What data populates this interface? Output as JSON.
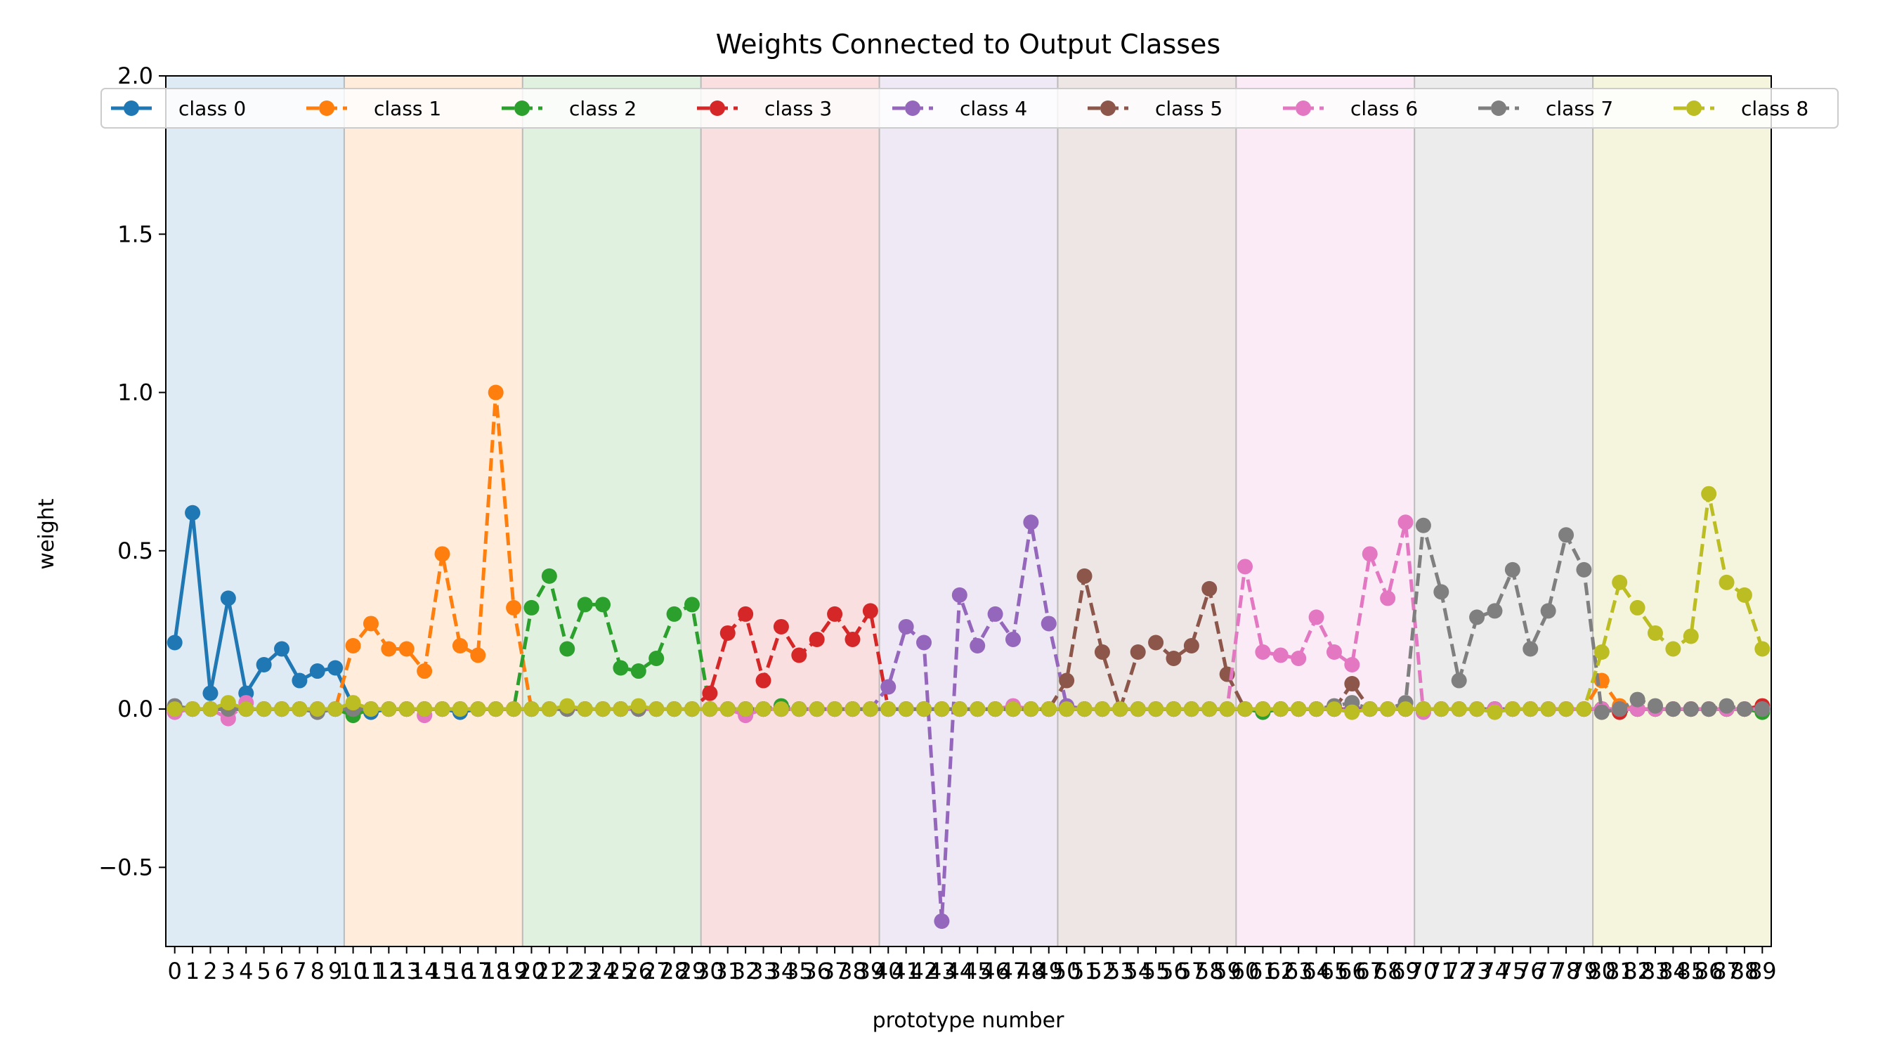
{
  "chart_data": {
    "type": "line",
    "title": "Weights Connected to Output Classes",
    "xlabel": "prototype number",
    "ylabel": "weight",
    "xlim": [
      -0.5,
      89.5
    ],
    "ylim": [
      -0.75,
      2.0
    ],
    "yticks": [
      -0.5,
      0.0,
      0.5,
      1.0,
      1.5,
      2.0
    ],
    "ytick_labels": [
      "−0.5",
      "0.0",
      "0.5",
      "1.0",
      "1.5",
      "2.0"
    ],
    "x": [
      0,
      1,
      2,
      3,
      4,
      5,
      6,
      7,
      8,
      9,
      10,
      11,
      12,
      13,
      14,
      15,
      16,
      17,
      18,
      19,
      20,
      21,
      22,
      23,
      24,
      25,
      26,
      27,
      28,
      29,
      30,
      31,
      32,
      33,
      34,
      35,
      36,
      37,
      38,
      39,
      40,
      41,
      42,
      43,
      44,
      45,
      46,
      47,
      48,
      49,
      50,
      51,
      52,
      53,
      54,
      55,
      56,
      57,
      58,
      59,
      60,
      61,
      62,
      63,
      64,
      65,
      66,
      67,
      68,
      69,
      70,
      71,
      72,
      73,
      74,
      75,
      76,
      77,
      78,
      79,
      80,
      81,
      82,
      83,
      84,
      85,
      86,
      87,
      88,
      89
    ],
    "grid": false,
    "legend_position": "top",
    "legend_ncol": 9,
    "bands": [
      {
        "start": 0,
        "end": 10,
        "color": "#1f77b4"
      },
      {
        "start": 10,
        "end": 20,
        "color": "#ff7f0e"
      },
      {
        "start": 20,
        "end": 30,
        "color": "#2ca02c"
      },
      {
        "start": 30,
        "end": 40,
        "color": "#d62728"
      },
      {
        "start": 40,
        "end": 50,
        "color": "#9467bd"
      },
      {
        "start": 50,
        "end": 60,
        "color": "#8c564b"
      },
      {
        "start": 60,
        "end": 70,
        "color": "#e377c2"
      },
      {
        "start": 70,
        "end": 80,
        "color": "#7f7f7f"
      },
      {
        "start": 80,
        "end": 90,
        "color": "#bcbd22"
      }
    ],
    "series": [
      {
        "name": "class 0",
        "color": "#1f77b4",
        "dash": "solid",
        "values": [
          0.21,
          0.62,
          0.05,
          0.35,
          0.05,
          0.14,
          0.19,
          0.09,
          0.12,
          0.13,
          0.01,
          -0.01,
          0.0,
          0.0,
          0.0,
          0.0,
          -0.01,
          0.0,
          0.0,
          0.0,
          0.0,
          0.0,
          0.0,
          0.0,
          0.0,
          0.0,
          0.0,
          0.0,
          0.0,
          0.0,
          0.0,
          0.0,
          0.0,
          0.0,
          0.0,
          0.0,
          0.0,
          0.0,
          0.0,
          0.0,
          0.0,
          0.0,
          0.0,
          0.0,
          0.0,
          0.0,
          0.0,
          0.0,
          0.0,
          0.0,
          0.0,
          0.0,
          0.0,
          0.0,
          0.0,
          0.0,
          0.0,
          0.0,
          0.0,
          0.0,
          0.0,
          0.0,
          0.0,
          0.0,
          0.0,
          0.0,
          0.0,
          0.0,
          0.0,
          0.0,
          0.0,
          0.0,
          0.0,
          0.0,
          0.0,
          0.0,
          0.0,
          0.0,
          0.0,
          0.0,
          0.0,
          0.0,
          0.0,
          0.0,
          0.0,
          0.0,
          0.0,
          0.0,
          0.0,
          0.0
        ]
      },
      {
        "name": "class 1",
        "color": "#ff7f0e",
        "dash": "dashed",
        "values": [
          0.0,
          0.0,
          0.0,
          0.0,
          0.0,
          0.0,
          0.0,
          0.0,
          0.0,
          0.0,
          0.2,
          0.27,
          0.19,
          0.19,
          0.12,
          0.49,
          0.2,
          0.17,
          1.0,
          0.32,
          0.0,
          0.0,
          0.0,
          0.0,
          0.0,
          0.0,
          0.0,
          0.0,
          0.0,
          0.0,
          0.0,
          0.0,
          0.0,
          0.0,
          0.0,
          0.0,
          0.0,
          0.0,
          0.0,
          0.0,
          0.0,
          0.0,
          0.0,
          0.0,
          0.0,
          0.0,
          0.0,
          0.0,
          0.0,
          0.0,
          0.0,
          0.0,
          0.0,
          0.0,
          0.0,
          0.0,
          0.0,
          0.0,
          0.0,
          0.0,
          0.0,
          0.0,
          0.0,
          0.0,
          0.0,
          0.0,
          0.0,
          0.0,
          0.0,
          0.0,
          0.0,
          0.0,
          0.0,
          0.0,
          0.0,
          0.0,
          0.0,
          0.0,
          0.0,
          0.0,
          0.09,
          0.01,
          0.0,
          0.0,
          0.0,
          0.0,
          0.0,
          0.0,
          0.0,
          0.0
        ]
      },
      {
        "name": "class 2",
        "color": "#2ca02c",
        "dash": "dashed",
        "values": [
          0.0,
          0.0,
          0.0,
          0.0,
          0.0,
          0.0,
          0.0,
          0.0,
          0.0,
          0.0,
          -0.02,
          0.0,
          0.0,
          0.0,
          0.0,
          0.0,
          0.0,
          0.0,
          0.0,
          0.0,
          0.32,
          0.42,
          0.19,
          0.33,
          0.33,
          0.13,
          0.12,
          0.16,
          0.3,
          0.33,
          0.0,
          0.0,
          0.0,
          0.0,
          0.01,
          0.0,
          0.0,
          0.0,
          0.0,
          0.0,
          0.0,
          0.0,
          0.0,
          0.0,
          0.0,
          0.0,
          0.0,
          0.0,
          0.0,
          0.0,
          0.0,
          0.0,
          0.0,
          0.0,
          0.0,
          0.0,
          0.0,
          0.0,
          0.0,
          0.0,
          0.0,
          -0.01,
          0.0,
          0.0,
          0.0,
          0.0,
          0.0,
          0.0,
          0.0,
          0.0,
          0.0,
          0.0,
          0.0,
          0.0,
          0.0,
          0.0,
          0.0,
          0.0,
          0.0,
          0.0,
          0.0,
          0.0,
          0.0,
          0.0,
          0.0,
          0.0,
          0.0,
          0.0,
          0.0,
          -0.01
        ]
      },
      {
        "name": "class 3",
        "color": "#d62728",
        "dash": "dashed",
        "values": [
          0.0,
          0.0,
          0.0,
          0.0,
          0.0,
          0.0,
          0.0,
          0.0,
          0.0,
          0.0,
          0.0,
          0.0,
          0.0,
          0.0,
          0.0,
          0.0,
          0.0,
          0.0,
          0.0,
          0.0,
          0.0,
          0.0,
          0.0,
          0.0,
          0.0,
          0.0,
          0.0,
          0.0,
          0.0,
          0.0,
          0.05,
          0.24,
          0.3,
          0.09,
          0.26,
          0.17,
          0.22,
          0.3,
          0.22,
          0.31,
          0.0,
          0.0,
          0.0,
          0.0,
          0.0,
          0.0,
          0.0,
          0.0,
          0.0,
          0.0,
          0.0,
          0.0,
          0.0,
          0.0,
          0.0,
          0.0,
          0.0,
          0.0,
          0.0,
          0.0,
          0.0,
          0.0,
          0.0,
          0.0,
          0.0,
          0.0,
          0.0,
          0.0,
          0.0,
          0.0,
          0.0,
          0.0,
          0.0,
          0.0,
          0.0,
          0.0,
          0.0,
          0.0,
          0.0,
          0.0,
          0.0,
          -0.01,
          0.0,
          0.0,
          0.0,
          0.0,
          0.0,
          0.0,
          0.0,
          0.01
        ]
      },
      {
        "name": "class 4",
        "color": "#9467bd",
        "dash": "dashed",
        "values": [
          0.0,
          0.0,
          0.0,
          0.0,
          0.0,
          0.0,
          0.0,
          0.0,
          0.0,
          0.0,
          0.0,
          0.0,
          0.0,
          0.0,
          0.0,
          0.0,
          0.0,
          0.0,
          0.0,
          0.0,
          0.0,
          0.0,
          0.0,
          0.0,
          0.0,
          0.0,
          0.0,
          0.0,
          0.0,
          0.0,
          0.0,
          0.0,
          0.0,
          0.0,
          0.0,
          0.0,
          0.0,
          0.0,
          0.0,
          0.0,
          0.07,
          0.26,
          0.21,
          -0.67,
          0.36,
          0.2,
          0.3,
          0.22,
          0.59,
          0.27,
          0.01,
          0.0,
          0.0,
          0.0,
          0.0,
          0.0,
          0.0,
          0.0,
          0.0,
          0.0,
          0.0,
          0.0,
          0.0,
          0.0,
          0.0,
          0.0,
          0.0,
          0.0,
          0.0,
          0.0,
          0.0,
          0.0,
          0.0,
          0.0,
          0.0,
          0.0,
          0.0,
          0.0,
          0.0,
          0.0,
          0.0,
          0.0,
          0.0,
          0.0,
          0.0,
          0.0,
          0.0,
          0.0,
          0.0,
          0.0
        ]
      },
      {
        "name": "class 5",
        "color": "#8c564b",
        "dash": "dashed",
        "values": [
          0.0,
          0.0,
          0.0,
          0.0,
          0.0,
          0.0,
          0.0,
          0.0,
          0.0,
          0.0,
          0.0,
          0.0,
          0.0,
          0.0,
          0.0,
          0.0,
          0.0,
          0.0,
          0.0,
          0.0,
          0.0,
          0.0,
          0.0,
          0.0,
          0.0,
          0.0,
          0.0,
          0.0,
          0.0,
          0.0,
          0.0,
          0.0,
          0.0,
          0.0,
          0.0,
          0.0,
          0.0,
          0.0,
          0.0,
          0.0,
          0.0,
          0.0,
          0.0,
          0.0,
          0.0,
          0.0,
          0.0,
          0.0,
          0.0,
          0.0,
          0.09,
          0.42,
          0.18,
          0.0,
          0.18,
          0.21,
          0.16,
          0.2,
          0.38,
          0.11,
          0.0,
          0.0,
          0.0,
          0.0,
          0.0,
          0.0,
          0.08,
          0.0,
          0.0,
          0.0,
          0.0,
          0.0,
          0.0,
          0.0,
          0.0,
          0.0,
          0.0,
          0.0,
          0.0,
          0.0,
          0.0,
          0.0,
          0.0,
          0.0,
          0.0,
          0.0,
          0.0,
          0.0,
          0.0,
          0.0
        ]
      },
      {
        "name": "class 6",
        "color": "#e377c2",
        "dash": "dashed",
        "values": [
          -0.01,
          0.0,
          0.0,
          -0.03,
          0.02,
          0.0,
          0.0,
          0.0,
          0.0,
          0.0,
          0.0,
          0.0,
          0.0,
          0.0,
          -0.02,
          0.0,
          0.0,
          0.0,
          0.0,
          0.0,
          0.0,
          0.0,
          0.0,
          0.0,
          0.0,
          0.0,
          0.0,
          0.0,
          0.0,
          0.0,
          0.0,
          0.0,
          -0.02,
          0.0,
          0.0,
          0.0,
          0.0,
          0.0,
          0.0,
          0.0,
          0.0,
          0.0,
          0.0,
          0.0,
          0.0,
          0.0,
          0.0,
          0.01,
          0.0,
          0.0,
          0.0,
          0.0,
          0.0,
          0.0,
          0.0,
          0.0,
          0.0,
          0.0,
          0.0,
          0.0,
          0.45,
          0.18,
          0.17,
          0.16,
          0.29,
          0.18,
          0.14,
          0.49,
          0.35,
          0.59,
          -0.01,
          0.0,
          0.0,
          0.0,
          0.0,
          0.0,
          0.0,
          0.0,
          0.0,
          0.0,
          0.0,
          0.0,
          0.0,
          0.0,
          0.0,
          0.0,
          0.0,
          0.0,
          0.0,
          0.0
        ]
      },
      {
        "name": "class 7",
        "color": "#7f7f7f",
        "dash": "dashed",
        "values": [
          0.01,
          0.0,
          0.0,
          0.0,
          0.0,
          0.0,
          0.0,
          0.0,
          -0.01,
          0.0,
          0.0,
          0.0,
          0.0,
          0.0,
          0.0,
          0.0,
          0.0,
          0.0,
          0.0,
          0.0,
          0.0,
          0.0,
          0.0,
          0.0,
          0.0,
          0.0,
          0.0,
          0.0,
          0.0,
          0.0,
          0.0,
          0.0,
          0.0,
          0.0,
          0.0,
          0.0,
          0.0,
          0.0,
          0.0,
          0.0,
          0.0,
          0.0,
          0.0,
          0.0,
          0.0,
          0.0,
          0.0,
          0.0,
          0.0,
          0.0,
          0.0,
          0.0,
          0.0,
          0.0,
          0.0,
          0.0,
          0.0,
          0.0,
          0.0,
          0.0,
          0.0,
          0.0,
          0.0,
          0.0,
          0.0,
          0.01,
          0.02,
          0.0,
          0.0,
          0.02,
          0.58,
          0.37,
          0.09,
          0.29,
          0.31,
          0.44,
          0.19,
          0.31,
          0.55,
          0.44,
          -0.01,
          0.0,
          0.03,
          0.01,
          0.0,
          0.0,
          0.0,
          0.01,
          0.0,
          0.0
        ]
      },
      {
        "name": "class 8",
        "color": "#bcbd22",
        "dash": "dashed",
        "values": [
          0.0,
          0.0,
          0.0,
          0.02,
          0.0,
          0.0,
          0.0,
          0.0,
          0.0,
          0.0,
          0.02,
          0.0,
          0.0,
          0.0,
          0.0,
          0.0,
          0.0,
          0.0,
          0.0,
          0.0,
          0.0,
          0.0,
          0.01,
          0.0,
          0.0,
          0.0,
          0.01,
          0.0,
          0.0,
          0.0,
          0.0,
          0.0,
          0.0,
          0.0,
          0.0,
          0.0,
          0.0,
          0.0,
          0.0,
          0.0,
          0.0,
          0.0,
          0.0,
          0.0,
          0.0,
          0.0,
          0.0,
          0.0,
          0.0,
          0.0,
          0.0,
          0.0,
          0.0,
          0.0,
          0.0,
          0.0,
          0.0,
          0.0,
          0.0,
          0.0,
          0.0,
          0.0,
          0.0,
          0.0,
          0.0,
          0.0,
          -0.01,
          0.0,
          0.0,
          0.0,
          0.0,
          0.0,
          0.0,
          0.0,
          -0.01,
          0.0,
          0.0,
          0.0,
          0.0,
          0.0,
          0.18,
          0.4,
          0.32,
          0.24,
          0.19,
          0.23,
          0.68,
          0.4,
          0.36,
          0.19
        ]
      }
    ]
  }
}
